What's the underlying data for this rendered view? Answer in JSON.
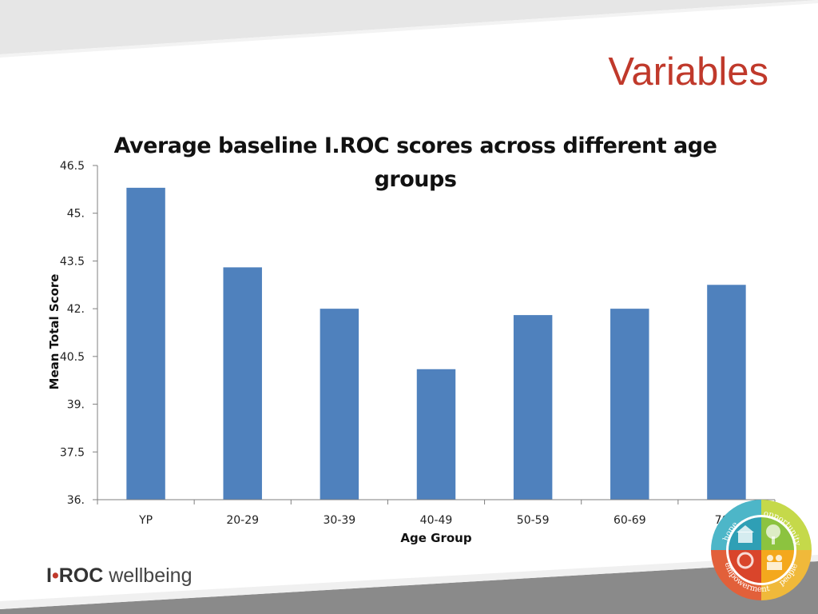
{
  "slide": {
    "title": "Variables"
  },
  "colors": {
    "bar": "#4f81bd",
    "title_red": "#c0392b",
    "axis": "#7f7f7f",
    "band_gray": "#e6e6e6"
  },
  "brand": {
    "part1": "I",
    "dot": "•",
    "part2": "ROC",
    "part3": "wellbeing"
  },
  "logo": {
    "icon": "wellbeing-wheel-icon",
    "words": [
      "hope",
      "opportunity",
      "empowerment",
      "people"
    ]
  },
  "chart_data": {
    "type": "bar",
    "title": "Average baseline I.ROC scores across different age groups",
    "xlabel": "Age Group",
    "ylabel": "Mean Total Score",
    "categories": [
      "YP",
      "20-29",
      "30-39",
      "40-49",
      "50-59",
      "60-69",
      "70+"
    ],
    "values": [
      45.8,
      43.3,
      42.0,
      40.1,
      41.8,
      42.0,
      42.75
    ],
    "ylim": [
      36,
      46.5
    ],
    "yticks": [
      46.5,
      45,
      43.5,
      42,
      40.5,
      39,
      37.5,
      36
    ],
    "ytick_labels": [
      "46.5",
      "45.",
      "43.5",
      "42.",
      "40.5",
      "39.",
      "37.5",
      "36."
    ],
    "grid": false,
    "legend": "none"
  }
}
